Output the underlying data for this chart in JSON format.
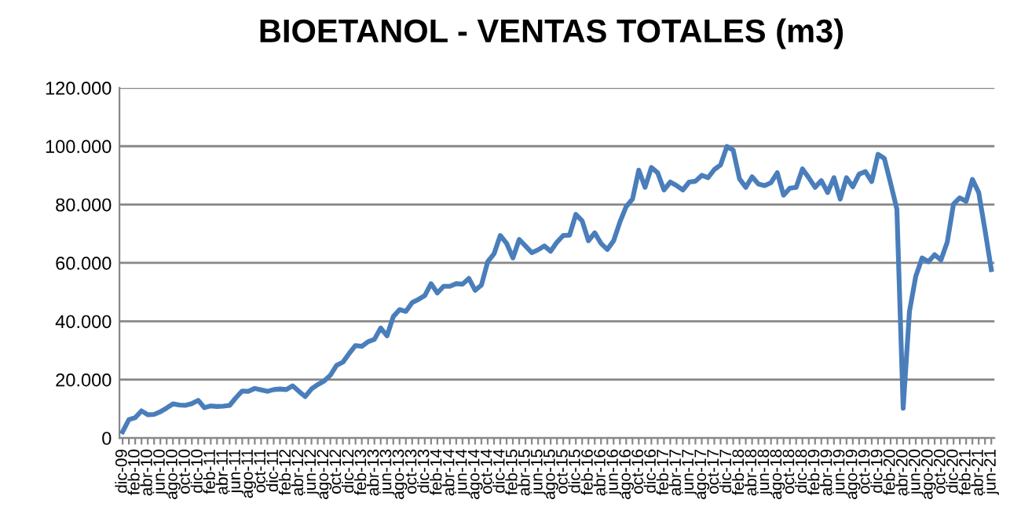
{
  "chart_data": {
    "type": "line",
    "title": "BIOETANOL - VENTAS TOTALES (m3)",
    "categories": [
      "dic-09",
      null,
      "feb-10",
      null,
      "abr-10",
      null,
      "jun-10",
      null,
      "ago-10",
      null,
      "oct-10",
      null,
      "dic-10",
      null,
      "feb-11",
      null,
      "abr-11",
      null,
      "jun-11",
      null,
      "ago-11",
      null,
      "oct-11",
      null,
      "dic-11",
      null,
      "feb-12",
      null,
      "abr-12",
      null,
      "jun-12",
      null,
      "ago-12",
      null,
      "oct-12",
      null,
      "dic-12",
      null,
      "feb-13",
      null,
      "abr-13",
      null,
      "jun-13",
      null,
      "ago-13",
      null,
      "oct-13",
      null,
      "dic-13",
      null,
      "feb-14",
      null,
      "abr-14",
      null,
      "jun-14",
      null,
      "ago-14",
      null,
      "oct-14",
      null,
      "dic-14",
      null,
      "feb-15",
      null,
      "abr-15",
      null,
      "jun-15",
      null,
      "ago-15",
      null,
      "oct-15",
      null,
      "dic-15",
      null,
      "feb-16",
      null,
      "abr-16",
      null,
      "jun-16",
      null,
      "ago-16",
      null,
      "oct-16",
      null,
      "dic-16",
      null,
      "feb-17",
      null,
      "abr-17",
      null,
      "jun-17",
      null,
      "ago-17",
      null,
      "oct-17",
      null,
      "dic-17",
      null,
      "feb-18",
      null,
      "abr-18",
      null,
      "jun-18",
      null,
      "ago-18",
      null,
      "oct-18",
      null,
      "dic-18",
      null,
      "feb-19",
      null,
      "abr-19",
      null,
      "jun-19",
      null,
      "ago-19",
      null,
      "oct-19",
      null,
      "dic-19",
      null,
      "feb-20",
      null,
      "abr-20",
      null,
      "jun-20",
      null,
      "ago-20",
      null,
      "oct-20",
      null,
      "dic-20",
      null,
      "feb-21",
      null,
      "abr-21",
      null,
      "jun-21"
    ],
    "series": [
      {
        "color": "#4a7ebb",
        "values": [
          2150,
          6300,
          7000,
          9300,
          8000,
          8100,
          9000,
          10300,
          11700,
          11300,
          11200,
          11800,
          12900,
          10400,
          11000,
          10800,
          10900,
          11200,
          13800,
          16100,
          16000,
          17000,
          16500,
          16000,
          16600,
          16800,
          16600,
          17900,
          16000,
          14200,
          16800,
          18300,
          19500,
          21500,
          24900,
          26000,
          29000,
          31700,
          31400,
          33000,
          33800,
          37700,
          35000,
          41600,
          44000,
          43400,
          46400,
          47500,
          48800,
          52900,
          49700,
          52000,
          52000,
          52900,
          52700,
          54700,
          50600,
          52400,
          60400,
          63100,
          69400,
          66700,
          61700,
          68000,
          65800,
          63500,
          64500,
          65800,
          64000,
          67100,
          69400,
          69500,
          76600,
          74400,
          67600,
          70300,
          66700,
          64600,
          67600,
          74000,
          79300,
          81900,
          91800,
          85900,
          92700,
          90900,
          85000,
          87700,
          86500,
          85000,
          87700,
          88000,
          90000,
          89200,
          92000,
          93600,
          99900,
          98600,
          88800,
          85900,
          89500,
          87000,
          86500,
          87500,
          90900,
          83200,
          85600,
          85900,
          92200,
          89200,
          85900,
          88200,
          84100,
          89200,
          81900,
          89200,
          86100,
          90400,
          91300,
          87900,
          97200,
          95800,
          87300,
          78400,
          10200,
          43400,
          55400,
          61700,
          60400,
          62800,
          61000,
          67100,
          80200,
          82300,
          81100,
          88600,
          84100,
          71200,
          57700
        ]
      }
    ],
    "ylim": [
      0,
      120000
    ],
    "yticks": [
      {
        "value": 0,
        "label": "0"
      },
      {
        "value": 20000,
        "label": "20.000"
      },
      {
        "value": 40000,
        "label": "40.000"
      },
      {
        "value": 60000,
        "label": "60.000"
      },
      {
        "value": 80000,
        "label": "80.000"
      },
      {
        "value": 100000,
        "label": "100.000"
      },
      {
        "value": 120000,
        "label": "120.000"
      }
    ],
    "grid": "y",
    "legend": false,
    "marker": "none",
    "line_style": "solid"
  }
}
